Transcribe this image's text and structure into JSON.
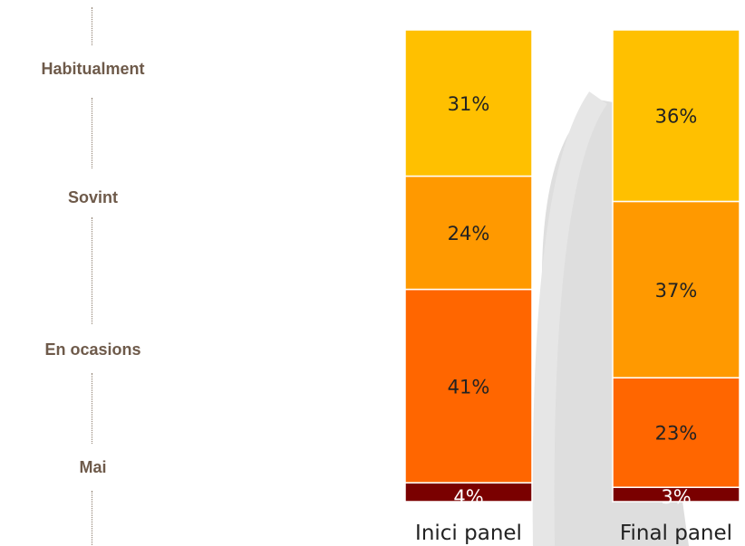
{
  "chart_data": {
    "type": "bar",
    "stacked": true,
    "normalized": true,
    "categories": [
      "Inici panel",
      "Final panel"
    ],
    "series": [
      {
        "name": "Mai",
        "values": [
          4,
          3
        ],
        "color": "#7a0000"
      },
      {
        "name": "En ocasions",
        "values": [
          41,
          23
        ],
        "color": "#ff6600"
      },
      {
        "name": "Sovint",
        "values": [
          24,
          37
        ],
        "color": "#ff9900"
      },
      {
        "name": "Habitualment",
        "values": [
          31,
          36
        ],
        "color": "#ffc000"
      }
    ],
    "data_labels": [
      [
        "4%",
        "41%",
        "24%",
        "31%"
      ],
      [
        "3%",
        "23%",
        "37%",
        "36%"
      ]
    ],
    "label_color_dark_segment": "#ffffff",
    "label_color": "#222222",
    "title": "",
    "xlabel": "",
    "ylabel": ""
  },
  "legend": {
    "items": [
      "Habitualment",
      "Sovint",
      "En ocasions",
      "Mai"
    ],
    "color": "#6e5a4a"
  },
  "watermark": {
    "shape": "grey-arc",
    "color": "#dedede"
  }
}
